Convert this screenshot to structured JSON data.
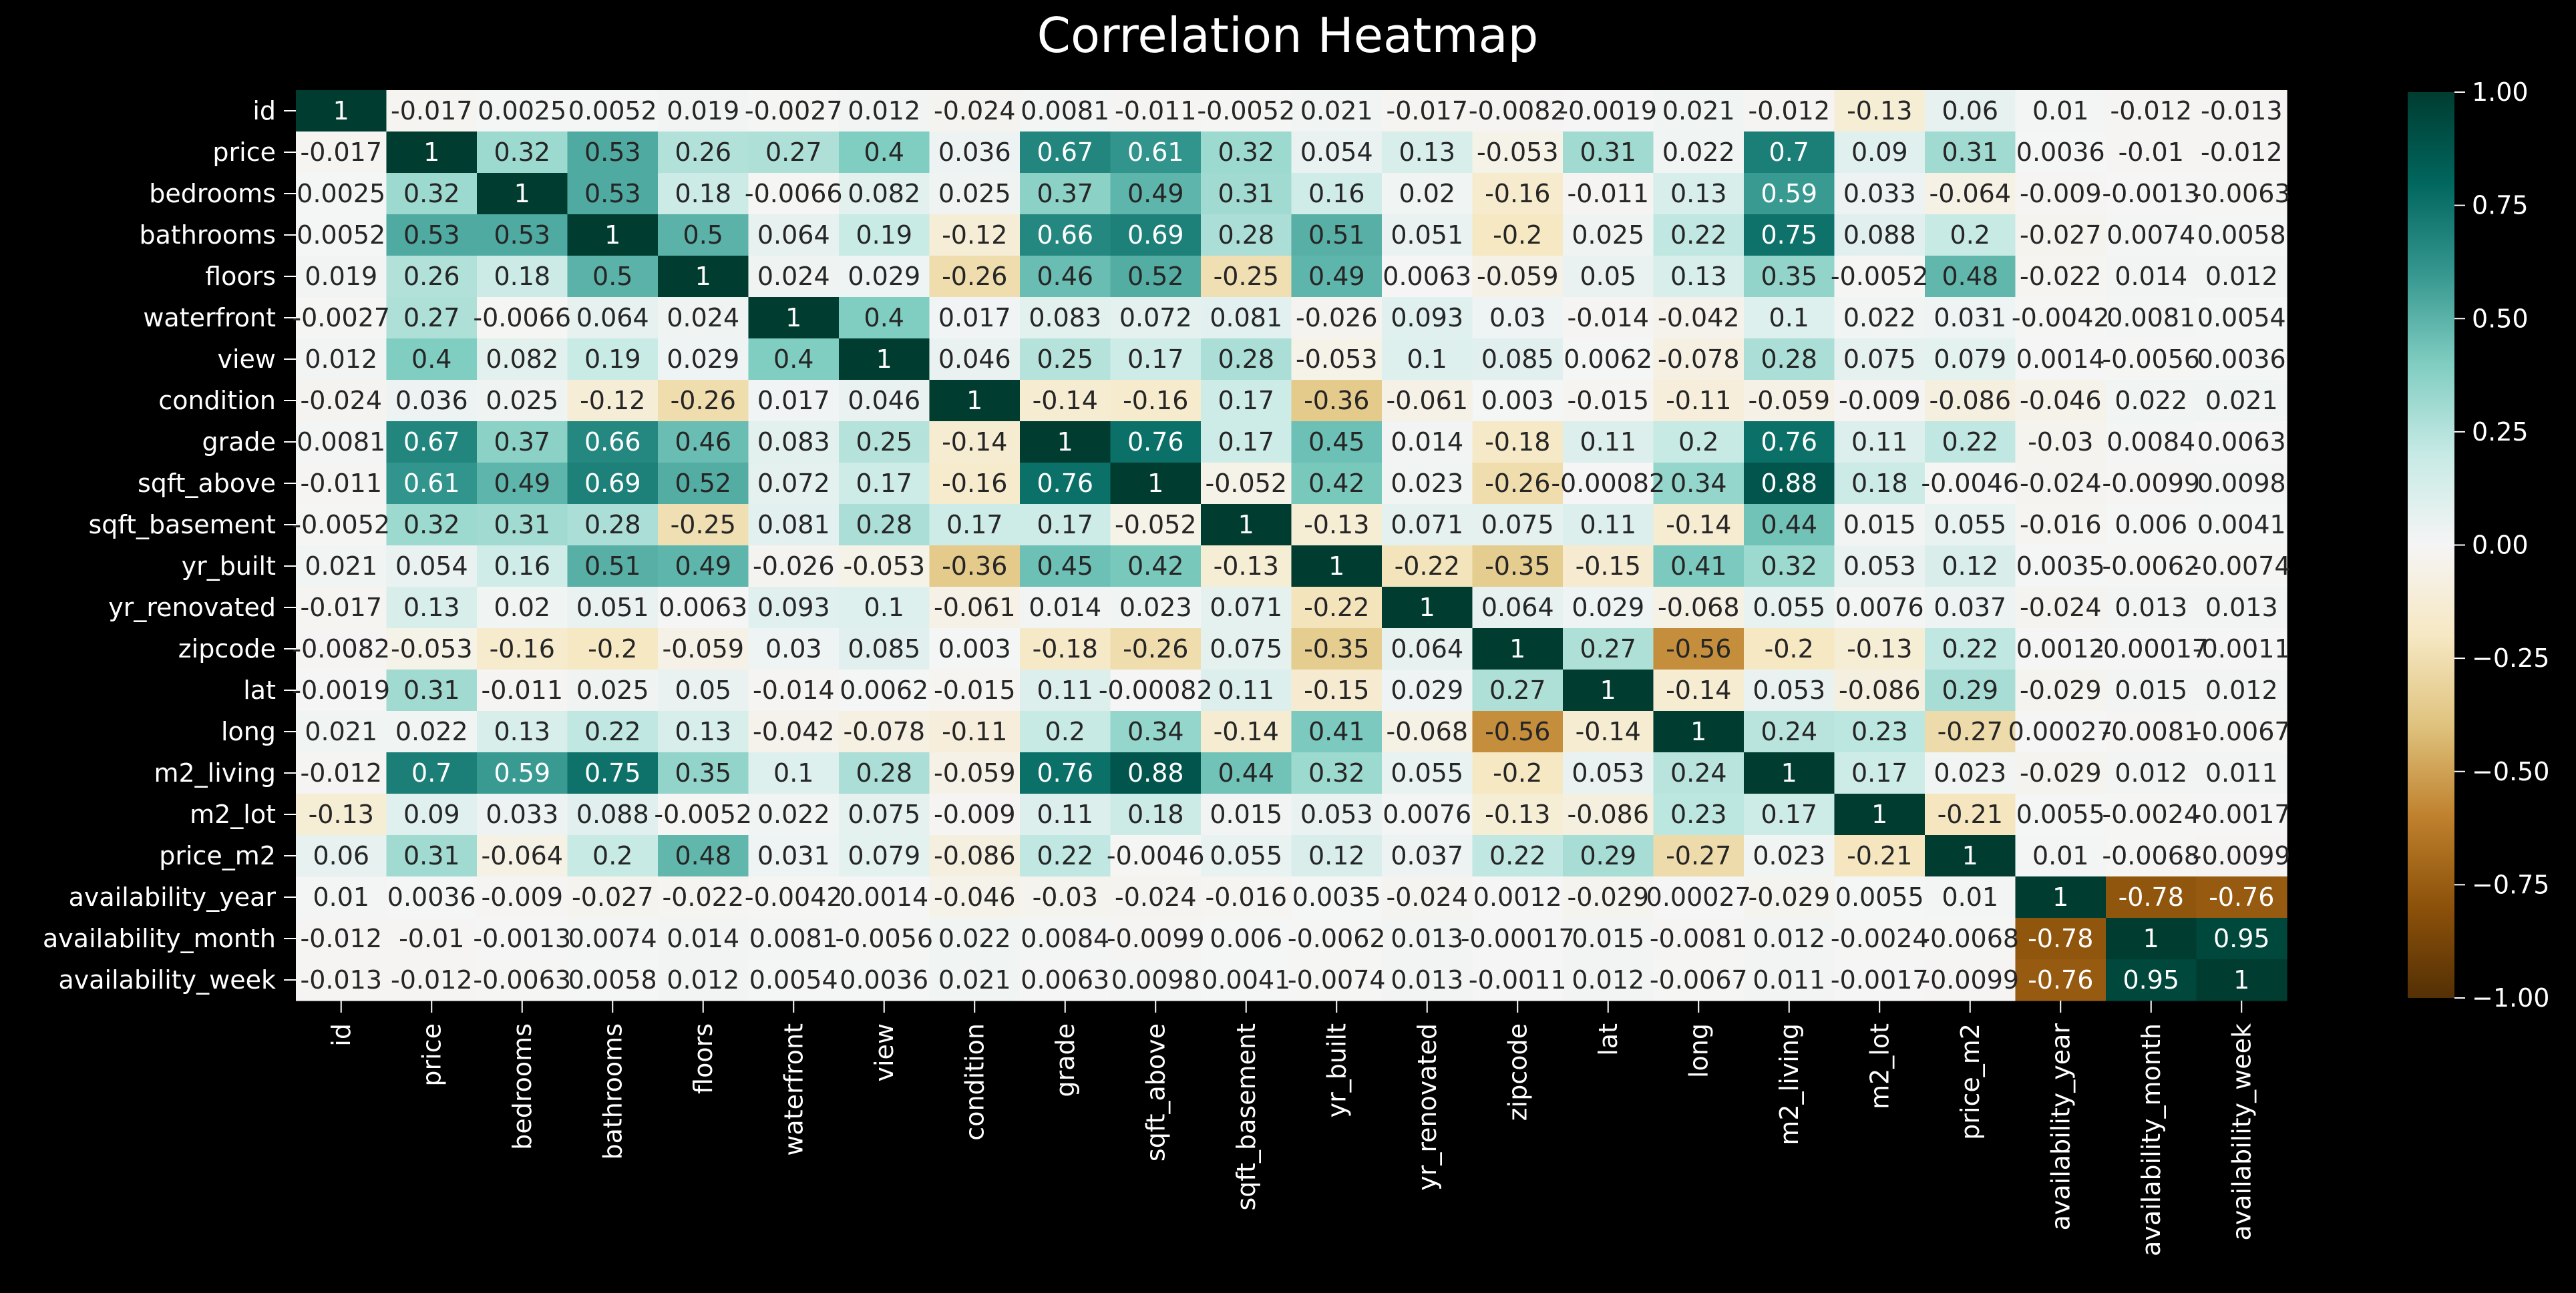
{
  "colors": {
    "background": "#000000",
    "text": "#ffffff",
    "cell_text_dark": "#262626",
    "cell_text_light": "#ffffff",
    "colormap": "BrBG"
  },
  "chart_data": {
    "type": "heatmap",
    "title": "Correlation Heatmap",
    "xlabel": "",
    "ylabel": "",
    "labels": [
      "id",
      "price",
      "bedrooms",
      "bathrooms",
      "floors",
      "waterfront",
      "view",
      "condition",
      "grade",
      "sqft_above",
      "sqft_basement",
      "yr_built",
      "yr_renovated",
      "zipcode",
      "lat",
      "long",
      "m2_living",
      "m2_lot",
      "price_m2",
      "availability_year",
      "availability_month",
      "availability_week"
    ],
    "vmin": -1.0,
    "vmax": 1.0,
    "colorbar_ticks": [
      "1.00",
      "0.75",
      "0.50",
      "0.25",
      "0.00",
      "−0.25",
      "−0.50",
      "−0.75",
      "−1.00"
    ],
    "colorbar_tick_values": [
      1.0,
      0.75,
      0.5,
      0.25,
      0.0,
      -0.25,
      -0.5,
      -0.75,
      -1.0
    ],
    "annotations": [
      [
        "1",
        "-0.017",
        "0.0025",
        "0.0052",
        "0.019",
        "-0.0027",
        "0.012",
        "-0.024",
        "0.0081",
        "-0.011",
        "-0.0052",
        "0.021",
        "-0.017",
        "-0.0082",
        "-0.0019",
        "0.021",
        "-0.012",
        "-0.13",
        "0.06",
        "0.01",
        "-0.012",
        "-0.013"
      ],
      [
        "-0.017",
        "1",
        "0.32",
        "0.53",
        "0.26",
        "0.27",
        "0.4",
        "0.036",
        "0.67",
        "0.61",
        "0.32",
        "0.054",
        "0.13",
        "-0.053",
        "0.31",
        "0.022",
        "0.7",
        "0.09",
        "0.31",
        "0.0036",
        "-0.01",
        "-0.012"
      ],
      [
        "0.0025",
        "0.32",
        "1",
        "0.53",
        "0.18",
        "-0.0066",
        "0.082",
        "0.025",
        "0.37",
        "0.49",
        "0.31",
        "0.16",
        "0.02",
        "-0.16",
        "-0.011",
        "0.13",
        "0.59",
        "0.033",
        "-0.064",
        "-0.009",
        "-0.0013",
        "-0.0063"
      ],
      [
        "0.0052",
        "0.53",
        "0.53",
        "1",
        "0.5",
        "0.064",
        "0.19",
        "-0.12",
        "0.66",
        "0.69",
        "0.28",
        "0.51",
        "0.051",
        "-0.2",
        "0.025",
        "0.22",
        "0.75",
        "0.088",
        "0.2",
        "-0.027",
        "0.0074",
        "0.0058"
      ],
      [
        "0.019",
        "0.26",
        "0.18",
        "0.5",
        "1",
        "0.024",
        "0.029",
        "-0.26",
        "0.46",
        "0.52",
        "-0.25",
        "0.49",
        "0.0063",
        "-0.059",
        "0.05",
        "0.13",
        "0.35",
        "-0.0052",
        "0.48",
        "-0.022",
        "0.014",
        "0.012"
      ],
      [
        "-0.0027",
        "0.27",
        "-0.0066",
        "0.064",
        "0.024",
        "1",
        "0.4",
        "0.017",
        "0.083",
        "0.072",
        "0.081",
        "-0.026",
        "0.093",
        "0.03",
        "-0.014",
        "-0.042",
        "0.1",
        "0.022",
        "0.031",
        "-0.0042",
        "0.0081",
        "0.0054"
      ],
      [
        "0.012",
        "0.4",
        "0.082",
        "0.19",
        "0.029",
        "0.4",
        "1",
        "0.046",
        "0.25",
        "0.17",
        "0.28",
        "-0.053",
        "0.1",
        "0.085",
        "0.0062",
        "-0.078",
        "0.28",
        "0.075",
        "0.079",
        "0.0014",
        "-0.0056",
        "0.0036"
      ],
      [
        "-0.024",
        "0.036",
        "0.025",
        "-0.12",
        "-0.26",
        "0.017",
        "0.046",
        "1",
        "-0.14",
        "-0.16",
        "0.17",
        "-0.36",
        "-0.061",
        "0.003",
        "-0.015",
        "-0.11",
        "-0.059",
        "-0.009",
        "-0.086",
        "-0.046",
        "0.022",
        "0.021"
      ],
      [
        "0.0081",
        "0.67",
        "0.37",
        "0.66",
        "0.46",
        "0.083",
        "0.25",
        "-0.14",
        "1",
        "0.76",
        "0.17",
        "0.45",
        "0.014",
        "-0.18",
        "0.11",
        "0.2",
        "0.76",
        "0.11",
        "0.22",
        "-0.03",
        "0.0084",
        "0.0063"
      ],
      [
        "-0.011",
        "0.61",
        "0.49",
        "0.69",
        "0.52",
        "0.072",
        "0.17",
        "-0.16",
        "0.76",
        "1",
        "-0.052",
        "0.42",
        "0.023",
        "-0.26",
        "-0.00082",
        "0.34",
        "0.88",
        "0.18",
        "-0.0046",
        "-0.024",
        "-0.0099",
        "0.0098"
      ],
      [
        "-0.0052",
        "0.32",
        "0.31",
        "0.28",
        "-0.25",
        "0.081",
        "0.28",
        "0.17",
        "0.17",
        "-0.052",
        "1",
        "-0.13",
        "0.071",
        "0.075",
        "0.11",
        "-0.14",
        "0.44",
        "0.015",
        "0.055",
        "-0.016",
        "0.006",
        "0.0041"
      ],
      [
        "0.021",
        "0.054",
        "0.16",
        "0.51",
        "0.49",
        "-0.026",
        "-0.053",
        "-0.36",
        "0.45",
        "0.42",
        "-0.13",
        "1",
        "-0.22",
        "-0.35",
        "-0.15",
        "0.41",
        "0.32",
        "0.053",
        "0.12",
        "0.0035",
        "-0.0062",
        "-0.0074"
      ],
      [
        "-0.017",
        "0.13",
        "0.02",
        "0.051",
        "0.0063",
        "0.093",
        "0.1",
        "-0.061",
        "0.014",
        "0.023",
        "0.071",
        "-0.22",
        "1",
        "0.064",
        "0.029",
        "-0.068",
        "0.055",
        "0.0076",
        "0.037",
        "-0.024",
        "0.013",
        "0.013"
      ],
      [
        "-0.0082",
        "-0.053",
        "-0.16",
        "-0.2",
        "-0.059",
        "0.03",
        "0.085",
        "0.003",
        "-0.18",
        "-0.26",
        "0.075",
        "-0.35",
        "0.064",
        "1",
        "0.27",
        "-0.56",
        "-0.2",
        "-0.13",
        "0.22",
        "0.0012",
        "-0.00017",
        "-0.0011"
      ],
      [
        "-0.0019",
        "0.31",
        "-0.011",
        "0.025",
        "0.05",
        "-0.014",
        "0.0062",
        "-0.015",
        "0.11",
        "-0.00082",
        "0.11",
        "-0.15",
        "0.029",
        "0.27",
        "1",
        "-0.14",
        "0.053",
        "-0.086",
        "0.29",
        "-0.029",
        "0.015",
        "0.012"
      ],
      [
        "0.021",
        "0.022",
        "0.13",
        "0.22",
        "0.13",
        "-0.042",
        "-0.078",
        "-0.11",
        "0.2",
        "0.34",
        "-0.14",
        "0.41",
        "-0.068",
        "-0.56",
        "-0.14",
        "1",
        "0.24",
        "0.23",
        "-0.27",
        "0.00027",
        "-0.0081",
        "-0.0067"
      ],
      [
        "-0.012",
        "0.7",
        "0.59",
        "0.75",
        "0.35",
        "0.1",
        "0.28",
        "-0.059",
        "0.76",
        "0.88",
        "0.44",
        "0.32",
        "0.055",
        "-0.2",
        "0.053",
        "0.24",
        "1",
        "0.17",
        "0.023",
        "-0.029",
        "0.012",
        "0.011"
      ],
      [
        "-0.13",
        "0.09",
        "0.033",
        "0.088",
        "-0.0052",
        "0.022",
        "0.075",
        "-0.009",
        "0.11",
        "0.18",
        "0.015",
        "0.053",
        "0.0076",
        "-0.13",
        "-0.086",
        "0.23",
        "0.17",
        "1",
        "-0.21",
        "0.0055",
        "-0.0024",
        "-0.0017"
      ],
      [
        "0.06",
        "0.31",
        "-0.064",
        "0.2",
        "0.48",
        "0.031",
        "0.079",
        "-0.086",
        "0.22",
        "-0.0046",
        "0.055",
        "0.12",
        "0.037",
        "0.22",
        "0.29",
        "-0.27",
        "0.023",
        "-0.21",
        "1",
        "0.01",
        "-0.0068",
        "-0.0099"
      ],
      [
        "0.01",
        "0.0036",
        "-0.009",
        "-0.027",
        "-0.022",
        "-0.0042",
        "0.0014",
        "-0.046",
        "-0.03",
        "-0.024",
        "-0.016",
        "0.0035",
        "-0.024",
        "0.0012",
        "-0.029",
        "0.00027",
        "-0.029",
        "0.0055",
        "0.01",
        "1",
        "-0.78",
        "-0.76"
      ],
      [
        "-0.012",
        "-0.01",
        "-0.0013",
        "0.0074",
        "0.014",
        "0.0081",
        "-0.0056",
        "0.022",
        "0.0084",
        "-0.0099",
        "0.006",
        "-0.0062",
        "0.013",
        "-0.00017",
        "0.015",
        "-0.0081",
        "0.012",
        "-0.0024",
        "-0.0068",
        "-0.78",
        "1",
        "0.95"
      ],
      [
        "-0.013",
        "-0.012",
        "-0.0063",
        "0.0058",
        "0.012",
        "0.0054",
        "0.0036",
        "0.021",
        "0.0063",
        "0.0098",
        "0.0041",
        "-0.0074",
        "0.013",
        "-0.0011",
        "0.012",
        "-0.0067",
        "0.011",
        "-0.0017",
        "-0.0099",
        "-0.76",
        "0.95",
        "1"
      ]
    ]
  }
}
